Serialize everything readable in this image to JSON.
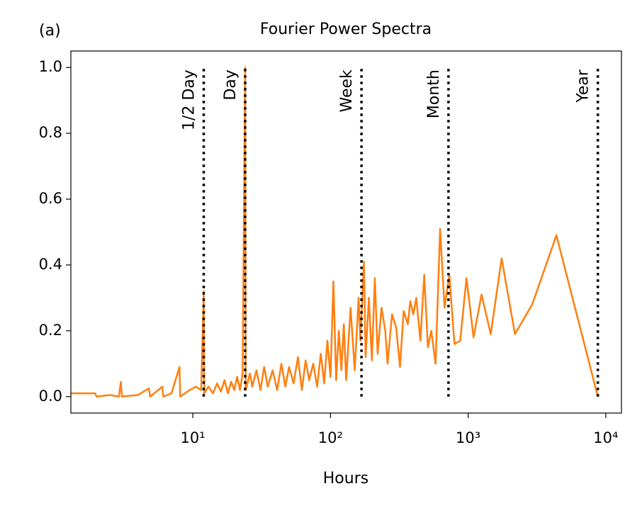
{
  "chart_data": {
    "type": "line",
    "panel_label": "(a)",
    "title": "Fourier Power Spectra",
    "x_label": "Hours",
    "log_x": true,
    "color": "#ff7f0e",
    "xlim": [
      1.3,
      13000
    ],
    "ylim": [
      -0.05,
      1.05
    ],
    "xticks": [
      {
        "value": 10,
        "label": "10¹"
      },
      {
        "value": 100,
        "label": "10²"
      },
      {
        "value": 1000,
        "label": "10³"
      },
      {
        "value": 10000,
        "label": "10⁴"
      }
    ],
    "yticks": [
      {
        "value": 0,
        "label": "0.0"
      },
      {
        "value": 0.2,
        "label": "0.2"
      },
      {
        "value": 0.4,
        "label": "0.4"
      },
      {
        "value": 0.6,
        "label": "0.6"
      },
      {
        "value": 0.8,
        "label": "0.8"
      },
      {
        "value": 1,
        "label": "1.0"
      }
    ],
    "x": [
      1.3,
      1.95,
      2.0,
      2.5,
      2.9,
      3.0,
      3.05,
      4.0,
      4.8,
      4.9,
      6.0,
      6.1,
      7.0,
      8.0,
      8.1,
      9.5,
      10.5,
      11.5,
      12.0,
      12.1,
      13,
      14,
      15,
      16,
      17,
      18,
      19,
      20,
      21,
      22,
      23,
      24,
      24.2,
      26,
      27,
      29,
      31,
      33,
      35,
      38,
      41,
      44,
      47,
      50,
      54,
      58,
      62,
      66,
      70,
      75,
      80,
      85,
      90,
      95,
      100,
      105,
      110,
      115,
      120,
      125,
      130,
      140,
      150,
      160,
      165,
      175,
      180,
      190,
      200,
      210,
      220,
      235,
      250,
      260,
      280,
      300,
      320,
      340,
      365,
      380,
      400,
      420,
      450,
      480,
      510,
      540,
      580,
      626,
      674,
      730,
      796,
      876,
      973,
      1095,
      1251,
      1460,
      1752,
      2190,
      2920,
      4380,
      8760
    ],
    "values": [
      0.01,
      0.01,
      0.0,
      0.005,
      0.0,
      0.045,
      0.0,
      0.005,
      0.025,
      0.0,
      0.03,
      0.0,
      0.01,
      0.09,
      0.0,
      0.02,
      0.03,
      0.02,
      0.32,
      0.01,
      0.03,
      0.01,
      0.04,
      0.015,
      0.05,
      0.01,
      0.045,
      0.02,
      0.06,
      0.02,
      0.07,
      1.0,
      0.02,
      0.07,
      0.03,
      0.08,
      0.02,
      0.09,
      0.03,
      0.08,
      0.02,
      0.1,
      0.03,
      0.09,
      0.04,
      0.12,
      0.02,
      0.11,
      0.05,
      0.1,
      0.03,
      0.13,
      0.04,
      0.17,
      0.06,
      0.35,
      0.05,
      0.2,
      0.08,
      0.22,
      0.05,
      0.27,
      0.08,
      0.3,
      0.17,
      0.41,
      0.12,
      0.3,
      0.11,
      0.36,
      0.13,
      0.27,
      0.2,
      0.1,
      0.25,
      0.21,
      0.09,
      0.26,
      0.22,
      0.29,
      0.25,
      0.3,
      0.17,
      0.37,
      0.15,
      0.2,
      0.1,
      0.51,
      0.27,
      0.37,
      0.16,
      0.17,
      0.36,
      0.18,
      0.31,
      0.19,
      0.42,
      0.19,
      0.28,
      0.49,
      0.0
    ],
    "annotations": [
      {
        "label": "1/2 Day",
        "x": 12,
        "y": [
          0,
          1
        ]
      },
      {
        "label": "Day",
        "x": 24,
        "y": [
          0,
          1
        ]
      },
      {
        "label": "Week",
        "x": 168,
        "y": [
          0,
          1
        ]
      },
      {
        "label": "Month",
        "x": 720,
        "y": [
          0,
          1
        ]
      },
      {
        "label": "Year",
        "x": 8760,
        "y": [
          0,
          1
        ]
      }
    ]
  }
}
